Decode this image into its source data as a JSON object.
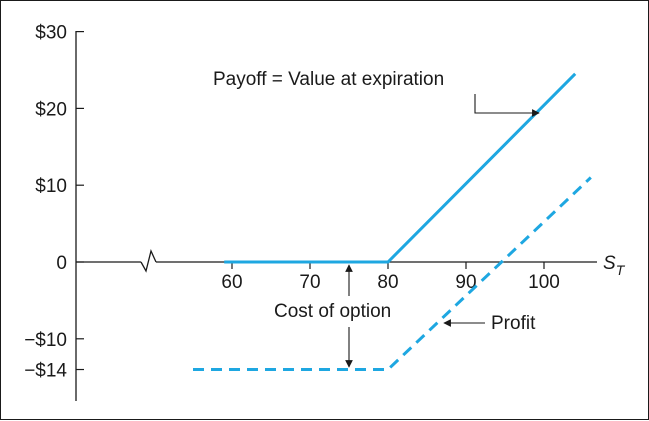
{
  "chart_data": {
    "type": "line",
    "title": "",
    "xlabel": "S",
    "xlabel_subscript": "T",
    "ylabel": "",
    "xlim": [
      55,
      106
    ],
    "ylim": [
      -18,
      30
    ],
    "x_ticks": [
      60,
      70,
      80,
      90,
      100
    ],
    "x_tick_labels": [
      "60",
      "70",
      "80",
      "90",
      "100"
    ],
    "y_ticks": [
      30,
      20,
      10,
      0,
      -10,
      -14
    ],
    "y_tick_labels": [
      "$30",
      "$20",
      "$10",
      "0",
      "−$10",
      "−$14"
    ],
    "axis_break": true,
    "grid": false,
    "legend": "none",
    "series": [
      {
        "style": "solid",
        "color": "#1ea7e1",
        "x": [
          59,
          80,
          104
        ],
        "y": [
          0,
          0,
          24.5
        ]
      },
      {
        "style": "dashed",
        "color": "#1ea7e1",
        "x": [
          55,
          80,
          106
        ],
        "y": [
          -14,
          -14,
          11
        ]
      }
    ],
    "annotations": [
      {
        "text": "Payoff = Value at expiration"
      },
      {
        "text": "Cost of option"
      },
      {
        "text": "Profit"
      }
    ]
  }
}
